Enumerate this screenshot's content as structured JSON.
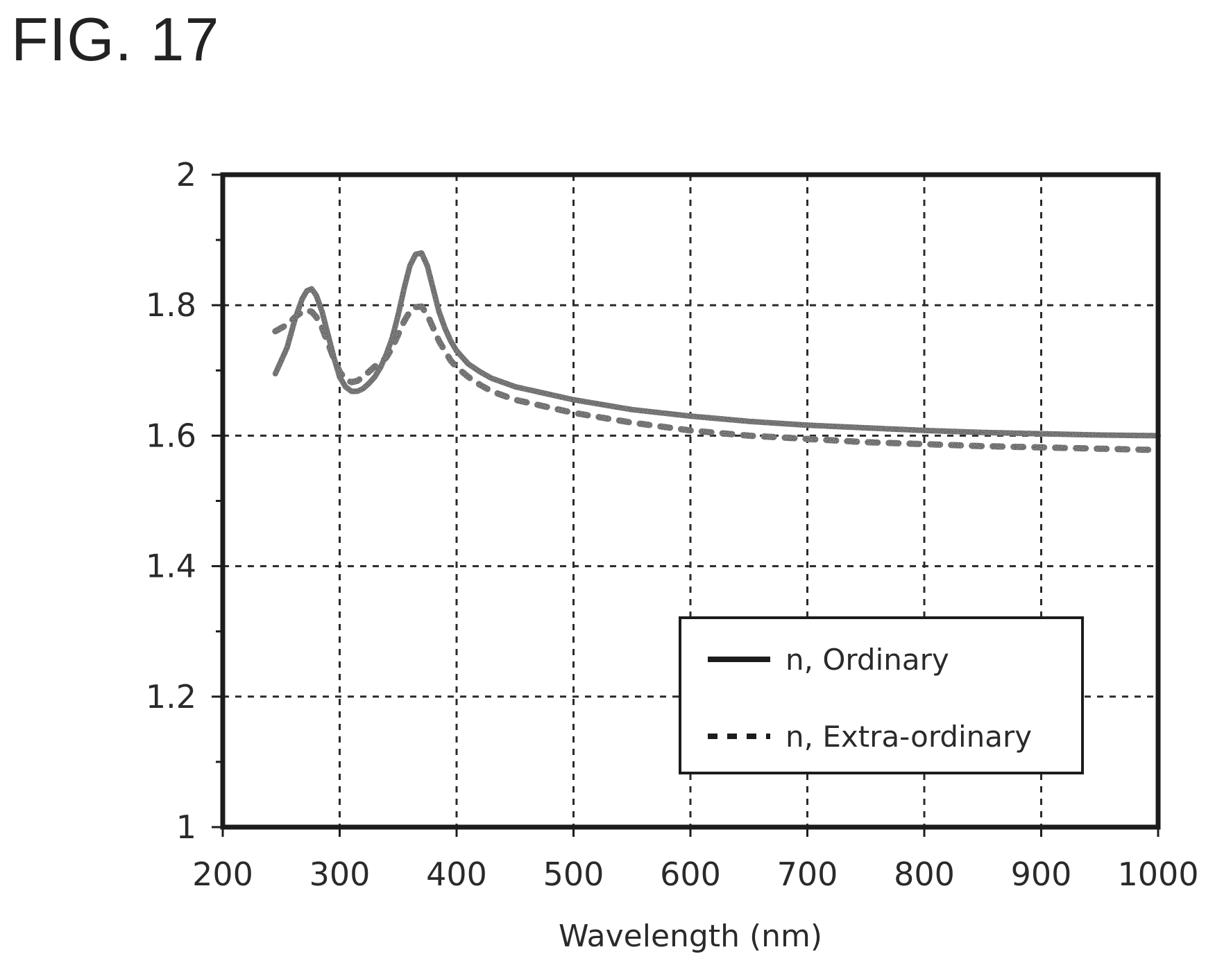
{
  "figure": {
    "label": "FIG. 17"
  },
  "chart_data": {
    "type": "line",
    "title": "",
    "xlabel": "Wavelength (nm)",
    "ylabel": "",
    "xlim": [
      200,
      1000
    ],
    "ylim": [
      1,
      2
    ],
    "x_ticks": [
      200,
      300,
      400,
      500,
      600,
      700,
      800,
      900,
      1000
    ],
    "x_tick_labels": [
      "200",
      "300",
      "400",
      "500",
      "600",
      "700",
      "800",
      "900",
      "1000"
    ],
    "y_ticks": [
      1,
      1.2,
      1.4,
      1.6,
      1.8,
      2
    ],
    "y_tick_labels": [
      "1",
      "1.2",
      "1.4",
      "1.6",
      "1.8",
      "2"
    ],
    "grid": true,
    "legend_position": "lower-right",
    "series": [
      {
        "name": "n, Ordinary",
        "style": "solid",
        "x": [
          245,
          255,
          262,
          268,
          272,
          276,
          280,
          285,
          290,
          295,
          300,
          305,
          310,
          315,
          320,
          325,
          330,
          335,
          340,
          345,
          350,
          355,
          360,
          365,
          370,
          375,
          380,
          385,
          390,
          395,
          400,
          410,
          420,
          430,
          450,
          475,
          500,
          550,
          600,
          650,
          700,
          750,
          800,
          850,
          900,
          950,
          1000
        ],
        "y": [
          1.695,
          1.735,
          1.78,
          1.81,
          1.822,
          1.825,
          1.815,
          1.79,
          1.755,
          1.72,
          1.69,
          1.675,
          1.668,
          1.668,
          1.672,
          1.68,
          1.69,
          1.705,
          1.725,
          1.75,
          1.785,
          1.825,
          1.86,
          1.878,
          1.88,
          1.86,
          1.825,
          1.79,
          1.765,
          1.745,
          1.73,
          1.71,
          1.698,
          1.688,
          1.675,
          1.665,
          1.655,
          1.64,
          1.63,
          1.622,
          1.616,
          1.612,
          1.608,
          1.605,
          1.603,
          1.601,
          1.6
        ]
      },
      {
        "name": "n, Extra-ordinary",
        "style": "dashed",
        "x": [
          245,
          255,
          262,
          268,
          272,
          276,
          280,
          285,
          290,
          295,
          300,
          305,
          310,
          315,
          320,
          325,
          330,
          335,
          340,
          345,
          350,
          355,
          360,
          365,
          370,
          375,
          380,
          385,
          390,
          395,
          400,
          410,
          420,
          430,
          450,
          475,
          500,
          550,
          600,
          650,
          700,
          750,
          800,
          850,
          900,
          950,
          1000
        ],
        "y": [
          1.76,
          1.77,
          1.782,
          1.79,
          1.792,
          1.79,
          1.782,
          1.765,
          1.742,
          1.718,
          1.698,
          1.686,
          1.682,
          1.684,
          1.69,
          1.698,
          1.706,
          1.712,
          1.72,
          1.735,
          1.755,
          1.775,
          1.79,
          1.797,
          1.798,
          1.785,
          1.765,
          1.745,
          1.73,
          1.715,
          1.705,
          1.69,
          1.678,
          1.668,
          1.655,
          1.645,
          1.635,
          1.62,
          1.608,
          1.6,
          1.595,
          1.59,
          1.587,
          1.584,
          1.582,
          1.58,
          1.578
        ]
      }
    ]
  },
  "colors": {
    "ink": "#1c1c1c",
    "grid": "#2a2a2a",
    "background": "#ffffff"
  }
}
